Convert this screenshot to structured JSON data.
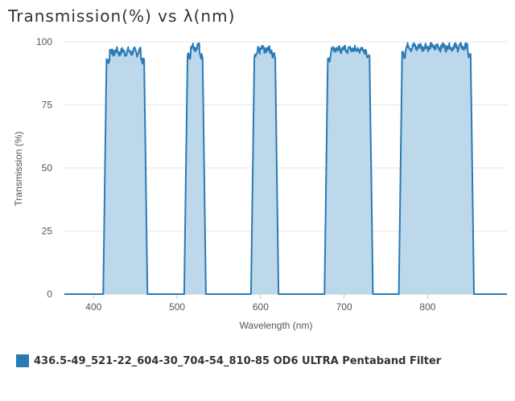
{
  "chart_data": {
    "type": "area",
    "title": "Transmission(%) vs λ(nm)",
    "xlabel": "Wavelength (nm)",
    "ylabel": "Transmission (%)",
    "xlim": [
      365,
      895
    ],
    "ylim": [
      0,
      100
    ],
    "x_ticks": [
      400,
      500,
      600,
      700,
      800
    ],
    "y_ticks": [
      0,
      25,
      50,
      75,
      100
    ],
    "grid": "horizontal",
    "legend_position": "bottom-left",
    "series": [
      {
        "name": "436.5-49_521-22_604-30_704-54_810-85 OD6 ULTRA Pentaband Filter",
        "color": "#2a7ab5",
        "fill": "#bed8eb",
        "bands": [
          {
            "x0": 413.5,
            "x1": 462.5,
            "plateau": 96
          },
          {
            "x0": 510.5,
            "x1": 532.5,
            "plateau": 98
          },
          {
            "x0": 590.5,
            "x1": 619.5,
            "plateau": 97
          },
          {
            "x0": 678.5,
            "x1": 732.5,
            "plateau": 97
          },
          {
            "x0": 767.5,
            "x1": 853.5,
            "plateau": 98
          }
        ]
      }
    ]
  },
  "legend": {
    "label": "436.5-49_521-22_604-30_704-54_810-85 OD6 ULTRA Pentaband Filter"
  }
}
